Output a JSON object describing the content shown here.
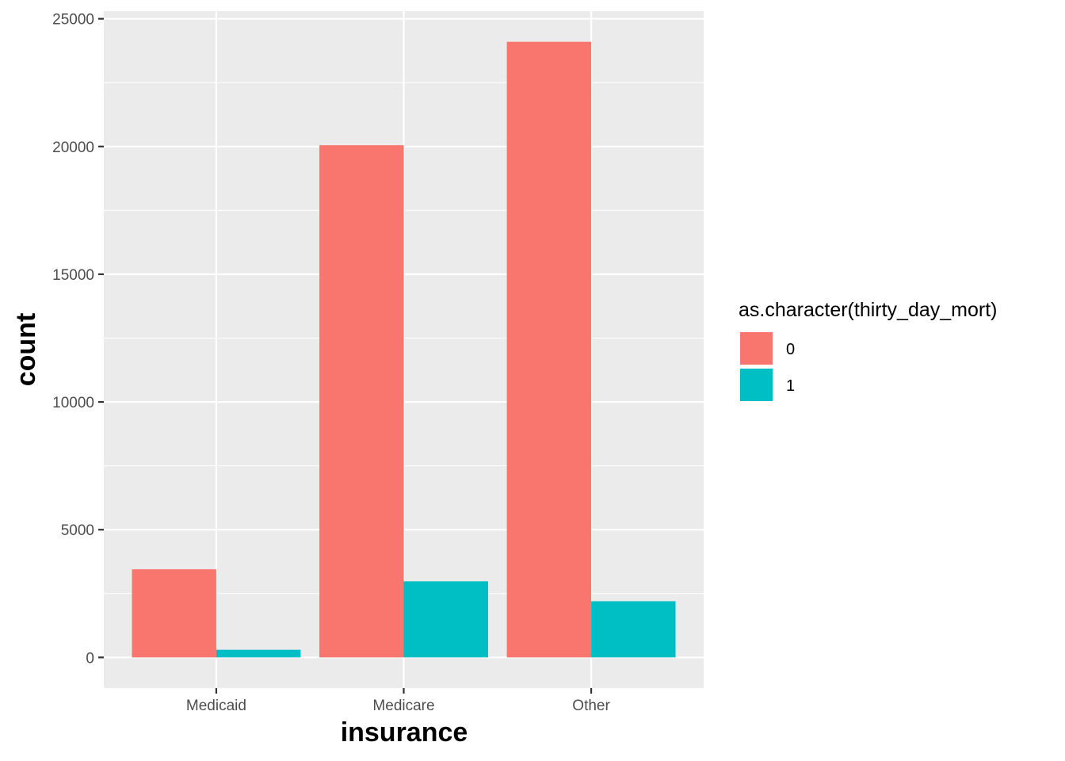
{
  "chart_data": {
    "type": "bar",
    "categories": [
      "Medicaid",
      "Medicare",
      "Other"
    ],
    "series": [
      {
        "name": "0",
        "values": [
          3450,
          20050,
          24100
        ],
        "color": "#F8766D"
      },
      {
        "name": "1",
        "values": [
          300,
          2980,
          2200
        ],
        "color": "#00BFC4"
      }
    ],
    "xlabel": "insurance",
    "ylabel": "count",
    "ylim": [
      -1200,
      25300
    ],
    "yticks": [
      0,
      5000,
      10000,
      15000,
      20000,
      25000
    ],
    "ytick_labels": [
      "0",
      "5000",
      "10000",
      "15000",
      "20000",
      "25000"
    ],
    "legend": {
      "title": "as.character(thirty_day_mort)",
      "position": "right"
    },
    "grid": true,
    "panel_background": "#EBEBEB",
    "grid_color": "#FFFFFF"
  }
}
